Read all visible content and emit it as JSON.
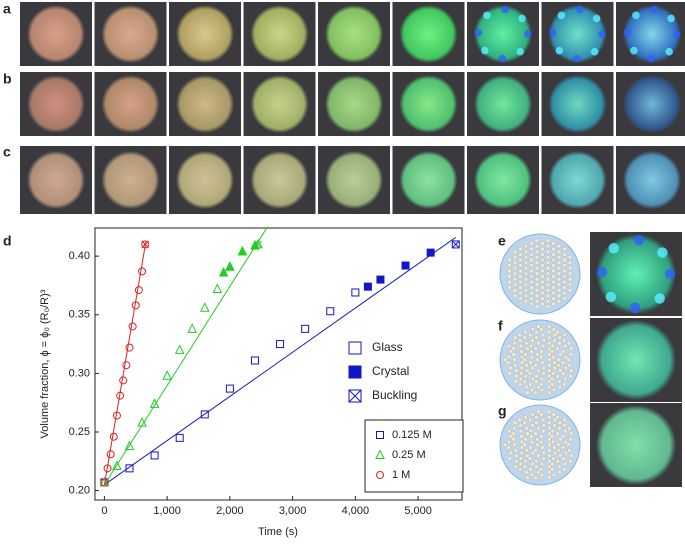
{
  "panel_labels": {
    "a": "a",
    "b": "b",
    "c": "c",
    "d": "d",
    "e": "e",
    "f": "f",
    "g": "g"
  },
  "chart_data": {
    "type": "scatter",
    "xlabel": "Time (s)",
    "ylabel": "Volume fraction, ϕ = ϕ₀ (R₀/R)³",
    "xlim": [
      -150,
      5700
    ],
    "ylim": [
      0.192,
      0.424
    ],
    "xticks": [
      0,
      {
        "value": 1000,
        "label": "1,000"
      },
      {
        "value": 2000,
        "label": "2,000"
      },
      {
        "value": 3000,
        "label": "3,000"
      },
      {
        "value": 4000,
        "label": "4,000"
      },
      {
        "value": 5000,
        "label": "5,000"
      }
    ],
    "yticks": [
      {
        "value": 0.2,
        "label": "0.20"
      },
      0.25,
      {
        "value": 0.3,
        "label": "0.30"
      },
      0.35,
      {
        "value": 0.4,
        "label": "0.40"
      }
    ],
    "phase_legend": [
      "Glass",
      "Crystal",
      "Buckling"
    ],
    "series": [
      {
        "name": "0.125 M",
        "color": "#1515c8",
        "marker": "square",
        "x": [
          0,
          400,
          800,
          1200,
          1600,
          2000,
          2400,
          2800,
          3200,
          3600,
          4000
        ],
        "values": [
          0.207,
          0.219,
          0.23,
          0.245,
          0.265,
          0.287,
          0.311,
          0.325,
          0.338,
          0.353,
          0.369
        ],
        "crystal_x": [
          4200,
          4400,
          4800,
          5200
        ],
        "crystal_values": [
          0.374,
          0.38,
          0.392,
          0.403
        ],
        "buckling_x": [
          5600
        ],
        "buckling_values": [
          0.41
        ],
        "fit_x": [
          0,
          5600
        ],
        "fit_values": [
          0.205,
          0.416
        ]
      },
      {
        "name": "0.25 M",
        "color": "#22cc22",
        "marker": "triangle",
        "x": [
          0,
          200,
          400,
          600,
          800,
          1000,
          1200,
          1400,
          1600,
          1800
        ],
        "values": [
          0.207,
          0.221,
          0.238,
          0.258,
          0.274,
          0.298,
          0.32,
          0.338,
          0.356,
          0.372
        ],
        "crystal_x": [
          1900,
          2000,
          2200,
          2400
        ],
        "crystal_values": [
          0.386,
          0.391,
          0.404,
          0.409
        ],
        "buckling_x": [
          2450
        ],
        "buckling_values": [
          0.41
        ],
        "fit_x": [
          0,
          2600
        ],
        "fit_values": [
          0.205,
          0.425
        ]
      },
      {
        "name": "1 M",
        "color": "#dd2222",
        "marker": "circle",
        "x": [
          0,
          50,
          100,
          150,
          200,
          250,
          300,
          350,
          400,
          450,
          500,
          550,
          600
        ],
        "values": [
          0.207,
          0.219,
          0.231,
          0.246,
          0.264,
          0.281,
          0.294,
          0.307,
          0.322,
          0.34,
          0.358,
          0.371,
          0.387
        ],
        "crystal_x": [],
        "crystal_values": [],
        "buckling_x": [
          650
        ],
        "buckling_values": [
          0.41
        ],
        "fit_x": [
          0,
          660
        ],
        "fit_values": [
          0.205,
          0.412
        ]
      }
    ]
  }
}
